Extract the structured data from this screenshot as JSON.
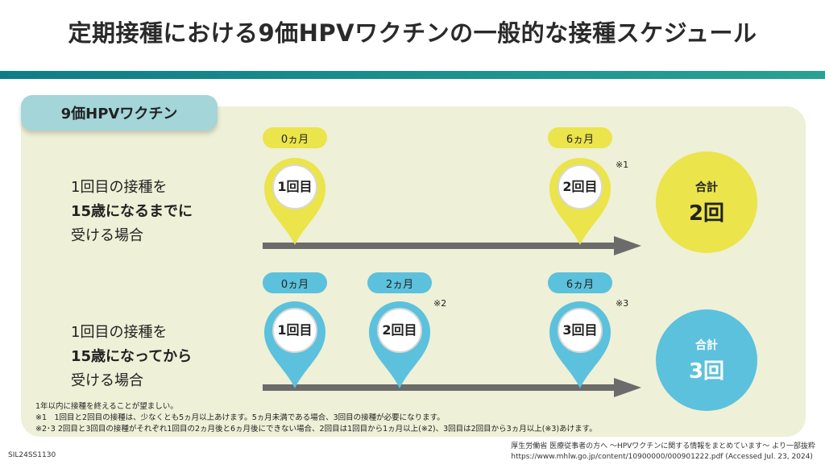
{
  "title": "定期接種における9価HPVワクチンの一般的な接種スケジュール",
  "vaccine_tag": "9価HPVワクチン",
  "row1": {
    "line1": "1回目の接種を",
    "line2": "15歳になるまでに",
    "line3": "受ける場合",
    "months": [
      "0ヵ月",
      "6ヵ月"
    ],
    "doses": [
      "1回目",
      "2回目"
    ],
    "note": "※1",
    "total_label": "合計",
    "total_value": "2回"
  },
  "row2": {
    "line1": "1回目の接種を",
    "line2": "15歳になってから",
    "line3": "受ける場合",
    "months": [
      "0ヵ月",
      "2ヵ月",
      "6ヵ月"
    ],
    "doses": [
      "1回目",
      "2回目",
      "3回目"
    ],
    "notes": [
      "※2",
      "※3"
    ],
    "total_label": "合計",
    "total_value": "3回"
  },
  "footnotes": [
    "1年以内に接種を終えることが望ましい。",
    "※1　1回目と2回目の接種は、少なくとも5ヵ月以上あけます。5ヵ月未満である場合、3回目の接種が必要になります。",
    "※2･3  2回目と3回目の接種がそれぞれ1回目の2ヵ月後と6ヵ月後にできない場合、2回目は1回目から1ヵ月以上(※2)、3回目は2回目から3ヵ月以上(※3)あけます。"
  ],
  "doc_code": "SIL24SS1130",
  "source_line1": "厚生労働省 医療従事者の方へ ～HPVワクチンに関する情報をまとめています～ より一部抜粋",
  "source_line2": "https://www.mhlw.go.jp/content/10900000/000901222.pdf (Accessed Jul. 23, 2024)",
  "colors": {
    "yellow": "#ebe44a",
    "blue": "#5cc1dc",
    "teal_rule": "#0f7d86",
    "panel": "#eef0d7",
    "tag": "#a4d5d8"
  }
}
